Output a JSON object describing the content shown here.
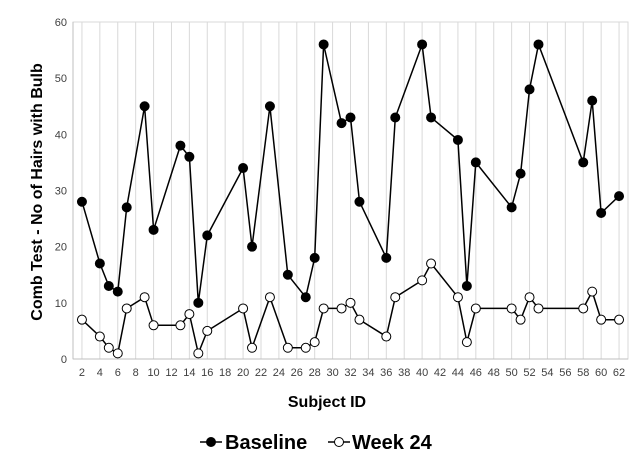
{
  "chart_data": {
    "type": "line",
    "xlabel": "Subject ID",
    "ylabel": "Comb Test - No of Hairs with Bulb",
    "xlim": [
      1,
      63
    ],
    "ylim": [
      0,
      60
    ],
    "x_ticks": [
      2,
      4,
      6,
      8,
      10,
      12,
      14,
      16,
      18,
      20,
      22,
      24,
      26,
      28,
      30,
      32,
      34,
      36,
      38,
      40,
      42,
      44,
      46,
      48,
      50,
      52,
      54,
      56,
      58,
      60,
      62
    ],
    "y_ticks": [
      0,
      10,
      20,
      30,
      40,
      50,
      60
    ],
    "grid": "vertical",
    "legend_position": "bottom",
    "series": [
      {
        "name": "Baseline",
        "marker": "filled-circle",
        "color": "#000000",
        "x": [
          2,
          4,
          5,
          6,
          7,
          9,
          10,
          13,
          14,
          15,
          16,
          20,
          21,
          23,
          25,
          27,
          28,
          29,
          31,
          32,
          33,
          36,
          37,
          40,
          41,
          44,
          45,
          46,
          50,
          51,
          52,
          53,
          58,
          59,
          60,
          62
        ],
        "values": [
          28,
          17,
          13,
          12,
          27,
          45,
          23,
          38,
          36,
          10,
          22,
          34,
          20,
          45,
          15,
          11,
          18,
          56,
          42,
          43,
          28,
          18,
          43,
          56,
          43,
          39,
          13,
          35,
          27,
          33,
          48,
          56,
          35,
          46,
          26,
          29
        ]
      },
      {
        "name": "Week 24",
        "marker": "open-circle",
        "color": "#000000",
        "x": [
          2,
          4,
          5,
          6,
          7,
          9,
          10,
          13,
          14,
          15,
          16,
          20,
          21,
          23,
          25,
          27,
          28,
          29,
          31,
          32,
          33,
          36,
          37,
          40,
          41,
          44,
          45,
          46,
          50,
          51,
          52,
          53,
          58,
          59,
          60,
          62
        ],
        "values": [
          7,
          4,
          2,
          1,
          9,
          11,
          6,
          6,
          8,
          1,
          5,
          9,
          2,
          11,
          2,
          2,
          3,
          9,
          9,
          10,
          7,
          4,
          11,
          14,
          17,
          11,
          3,
          9,
          9,
          7,
          11,
          9,
          9,
          12,
          7,
          7
        ]
      }
    ]
  }
}
